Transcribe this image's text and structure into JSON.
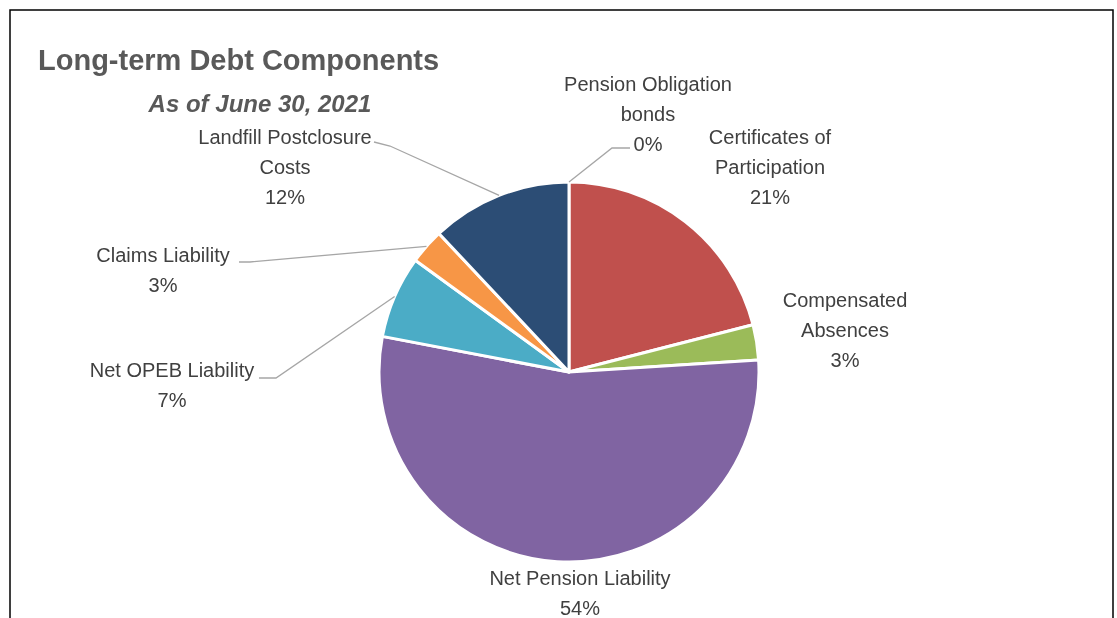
{
  "chart_data": {
    "type": "pie",
    "title": "Long-term Debt Components",
    "subtitle": "As of June 30, 2021",
    "categories": [
      "Pension Obligation bonds",
      "Certificates of Participation",
      "Compensated Absences",
      "Net Pension Liability",
      "Net OPEB Liability",
      "Claims Liability",
      "Landfill Postclosure Costs"
    ],
    "values": [
      0,
      21,
      3,
      54,
      7,
      3,
      12
    ],
    "value_labels": [
      "0%",
      "21%",
      "3%",
      "54%",
      "7%",
      "3%",
      "12%"
    ],
    "colors": [
      "#1f497d",
      "#c0504d",
      "#9bbb59",
      "#8064a2",
      "#4bacc6",
      "#f79646",
      "#2c4d75"
    ]
  }
}
